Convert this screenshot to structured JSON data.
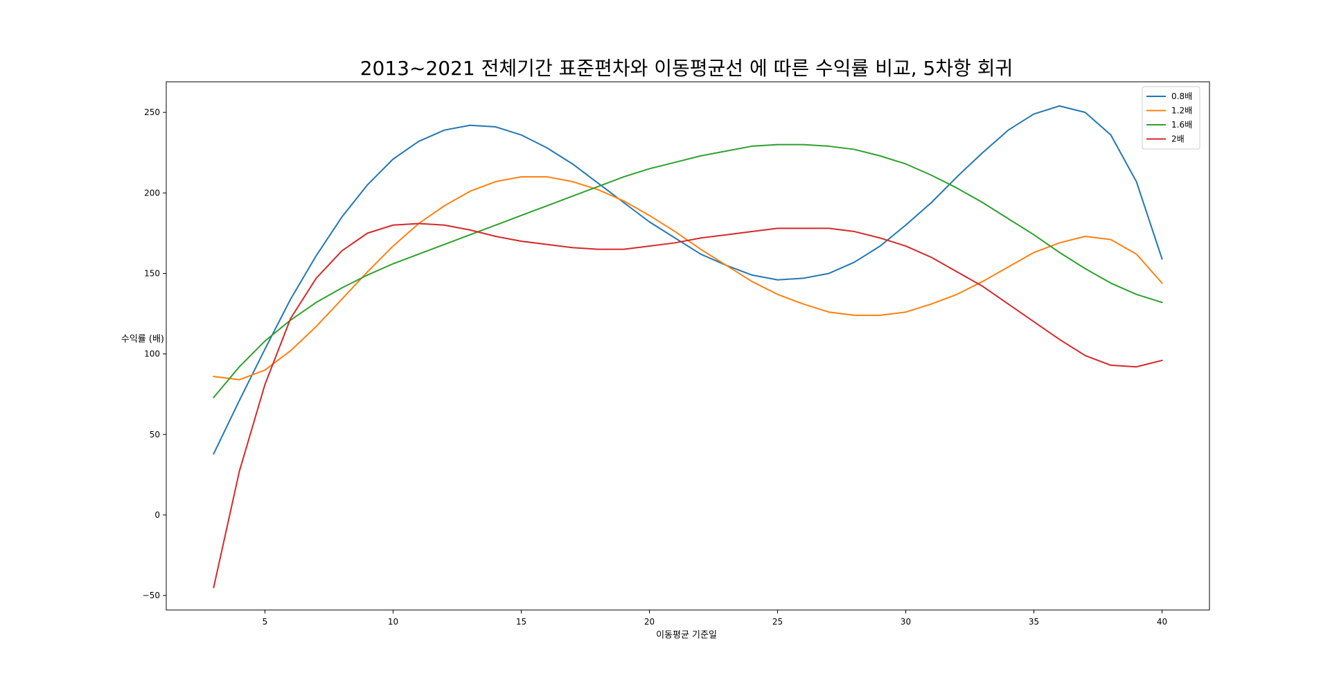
{
  "chart_data": {
    "type": "line",
    "title": "2013~2021 전체기간 표준편차와 이동평균선 에 따른 수익률 비교, 5차항 회귀",
    "xlabel": "이동평균 기준일",
    "ylabel": "수익률 (배)",
    "xlim": [
      1.15,
      41.85
    ],
    "ylim": [
      -59,
      269
    ],
    "xticks": [
      5,
      10,
      15,
      20,
      25,
      30,
      35,
      40
    ],
    "yticks": [
      -50,
      0,
      50,
      100,
      150,
      200,
      250
    ],
    "ytick_labels": [
      "−50",
      "0",
      "50",
      "100",
      "150",
      "200",
      "250"
    ],
    "grid": false,
    "legend_position": "top-right",
    "x": [
      3,
      4,
      5,
      6,
      7,
      8,
      9,
      10,
      11,
      12,
      13,
      14,
      15,
      16,
      17,
      18,
      19,
      20,
      21,
      22,
      23,
      24,
      25,
      26,
      27,
      28,
      29,
      30,
      31,
      32,
      33,
      34,
      35,
      36,
      37,
      38,
      39,
      40
    ],
    "series": [
      {
        "name": "0.8배",
        "color": "#1f77b4",
        "values": [
          38,
          71,
          103,
          134,
          161,
          185,
          205,
          221,
          232,
          239,
          242,
          241,
          236,
          228,
          218,
          206,
          194,
          182,
          172,
          162,
          155,
          149,
          146,
          147,
          150,
          157,
          167,
          180,
          194,
          210,
          225,
          239,
          249,
          254,
          250,
          236,
          207,
          159
        ]
      },
      {
        "name": "1.2배",
        "color": "#ff7f0e",
        "values": [
          86,
          84,
          90,
          102,
          117,
          134,
          151,
          167,
          181,
          192,
          201,
          207,
          210,
          210,
          207,
          202,
          195,
          186,
          176,
          165,
          155,
          145,
          137,
          131,
          126,
          124,
          124,
          126,
          131,
          137,
          145,
          154,
          163,
          169,
          173,
          171,
          162,
          144
        ]
      },
      {
        "name": "1.6배",
        "color": "#2ca02c",
        "values": [
          73,
          92,
          108,
          121,
          132,
          141,
          149,
          156,
          162,
          168,
          174,
          180,
          186,
          192,
          198,
          204,
          210,
          215,
          219,
          223,
          226,
          229,
          230,
          230,
          229,
          227,
          223,
          218,
          211,
          203,
          194,
          184,
          174,
          163,
          153,
          144,
          137,
          132
        ]
      },
      {
        "name": "2배",
        "color": "#d62728",
        "values": [
          -45,
          27,
          81,
          122,
          147,
          164,
          175,
          180,
          181,
          180,
          177,
          173,
          170,
          168,
          166,
          165,
          165,
          167,
          169,
          172,
          174,
          176,
          178,
          178,
          178,
          176,
          172,
          167,
          160,
          151,
          142,
          131,
          120,
          109,
          99,
          93,
          92,
          96
        ]
      }
    ]
  }
}
